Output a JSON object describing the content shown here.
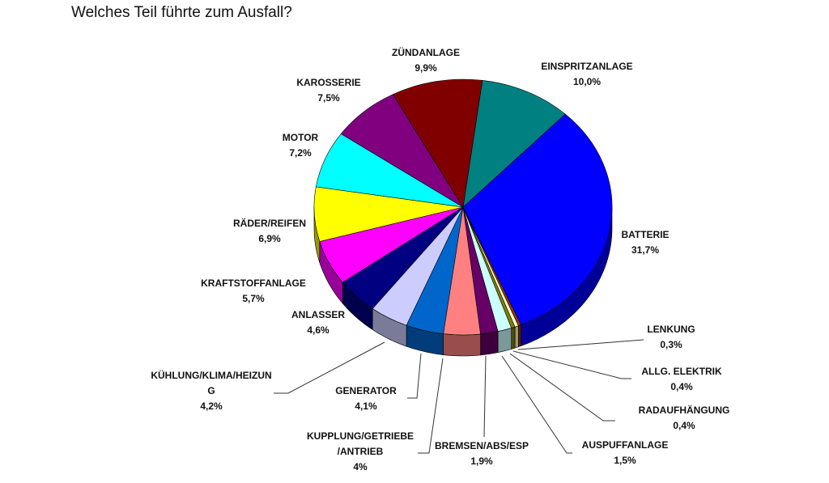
{
  "chart_data": {
    "type": "pie",
    "title": "Welches Teil führte zum Ausfall?",
    "style": "3d",
    "slices": [
      {
        "label": "EINSPRITZANLAGE",
        "value": 10.0,
        "value_label": "10,0%",
        "color": "#008080"
      },
      {
        "label": "BATTERIE",
        "value": 31.7,
        "value_label": "31,7%",
        "color": "#0000ff"
      },
      {
        "label": "LENKUNG",
        "value": 0.3,
        "value_label": "0,3%",
        "color": "#993300"
      },
      {
        "label": "ALLG. ELEKTRIK",
        "value": 0.4,
        "value_label": "0,4%",
        "color": "#ffffcc"
      },
      {
        "label": "RADAUFHÄNGUNG",
        "value": 0.4,
        "value_label": "0,4%",
        "color": "#808000"
      },
      {
        "label": "AUSPUFFANLAGE",
        "value": 1.5,
        "value_label": "1,5%",
        "color": "#ccffff"
      },
      {
        "label": "BREMSEN/ABS/ESP",
        "value": 1.9,
        "value_label": "1,9%",
        "color": "#660066"
      },
      {
        "label": "KUPPLUNG/GETRIEBE\n/ANTRIEB",
        "value": 4,
        "value_label": "4%",
        "color": "#ff8080"
      },
      {
        "label": "GENERATOR",
        "value": 4.1,
        "value_label": "4,1%",
        "color": "#0066cc"
      },
      {
        "label": "KÜHLUNG/KLIMA/HEIZUN\nG",
        "value": 4.2,
        "value_label": "4,2%",
        "color": "#ccccff"
      },
      {
        "label": "ANLASSER",
        "value": 4.6,
        "value_label": "4,6%",
        "color": "#000080"
      },
      {
        "label": "KRAFTSTOFFANLAGE",
        "value": 5.7,
        "value_label": "5,7%",
        "color": "#ff00ff"
      },
      {
        "label": "RÄDER/REIFEN",
        "value": 6.9,
        "value_label": "6,9%",
        "color": "#ffff00"
      },
      {
        "label": "MOTOR",
        "value": 7.2,
        "value_label": "7,2%",
        "color": "#00ffff"
      },
      {
        "label": "KAROSSERIE",
        "value": 7.5,
        "value_label": "7,5%",
        "color": "#800080"
      },
      {
        "label": "ZÜNDANLAGE",
        "value": 9.9,
        "value_label": "9,9%",
        "color": "#800000"
      }
    ]
  }
}
